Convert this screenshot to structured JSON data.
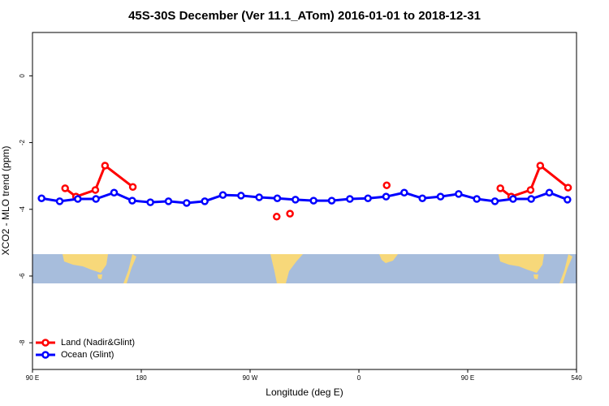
{
  "chart_data": {
    "type": "line",
    "title": "45S-30S December (Ver 11.1_ATom)   2016-01-01 to 2018-12-31",
    "xlabel": "Longitude (deg E)",
    "ylabel": "XCO2 - MLO trend (ppm)",
    "xlim": [
      90,
      540
    ],
    "ylim": [
      -8.8,
      1.3
    ],
    "xticks": [
      {
        "value": 90,
        "label": "90 E"
      },
      180,
      {
        "value": 270,
        "label": "90 W"
      },
      {
        "value": 360,
        "label": "0"
      },
      {
        "value": 450,
        "label": "90 E"
      },
      540
    ],
    "yticks": [
      0,
      -2,
      -4,
      -6,
      -8
    ],
    "legend": "bottom-left",
    "series": [
      {
        "name": "Land (Nadir&Glint)",
        "color": "#ff0000",
        "x": [
          117,
          126,
          142,
          150,
          173,
          null,
          292,
          null,
          303,
          null,
          383,
          null,
          477,
          486,
          502,
          510,
          533
        ],
        "values": [
          -3.37,
          -3.62,
          -3.42,
          -2.69,
          -3.33,
          null,
          -4.22,
          null,
          -4.13,
          null,
          -3.28,
          null,
          -3.37,
          -3.62,
          -3.42,
          -2.69,
          -3.35
        ]
      },
      {
        "name": "Ocean (Glint)",
        "color": "#0000ff",
        "x": [
          97.5,
          112.5,
          127.5,
          142.5,
          157.5,
          172.5,
          187.5,
          202.5,
          217.5,
          232.5,
          247.5,
          262.5,
          277.5,
          292.5,
          307.5,
          322.5,
          337.5,
          352.5,
          367.5,
          382.5,
          397.5,
          412.5,
          427.5,
          442.5,
          457.5,
          472.5,
          487.5,
          502.5,
          517.5,
          532.5
        ],
        "values": [
          -3.67,
          -3.76,
          -3.69,
          -3.69,
          -3.5,
          -3.74,
          -3.79,
          -3.76,
          -3.81,
          -3.76,
          -3.57,
          -3.59,
          -3.64,
          -3.67,
          -3.71,
          -3.74,
          -3.74,
          -3.69,
          -3.67,
          -3.62,
          -3.5,
          -3.67,
          -3.62,
          -3.54,
          -3.69,
          -3.76,
          -3.69,
          -3.69,
          -3.5,
          -3.71
        ]
      }
    ]
  }
}
